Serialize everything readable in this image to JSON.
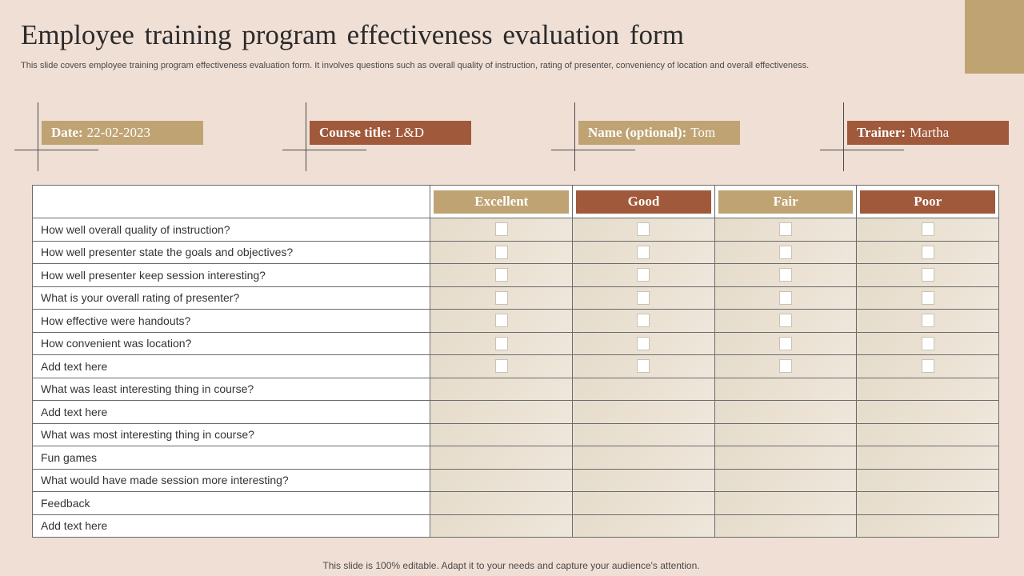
{
  "title": "Employee training program effectiveness evaluation form",
  "subtitle": "This slide covers employee training program effectiveness evaluation form. It involves questions such as  overall quality of instruction, rating of presenter, conveniency of location and overall effectiveness.",
  "fields": [
    {
      "label": "Date:",
      "value": "22-02-2023"
    },
    {
      "label": "Course title:",
      "value": "L&D"
    },
    {
      "label": "Name (optional):",
      "value": "Tom"
    },
    {
      "label": "Trainer:",
      "value": "Martha"
    }
  ],
  "ratings": [
    "Excellent",
    "Good",
    "Fair",
    "Poor"
  ],
  "rows": [
    {
      "question": "How well overall quality of instruction?",
      "checkboxes": true
    },
    {
      "question": "How well presenter state the goals and objectives?",
      "checkboxes": true
    },
    {
      "question": "How well presenter keep session interesting?",
      "checkboxes": true
    },
    {
      "question": "What is your overall rating of presenter?",
      "checkboxes": true
    },
    {
      "question": "How effective were handouts?",
      "checkboxes": true
    },
    {
      "question": "How convenient was location?",
      "checkboxes": true
    },
    {
      "question": "Add text here",
      "checkboxes": true
    },
    {
      "question": "What was least interesting thing in course?",
      "checkboxes": false
    },
    {
      "question": "Add text here",
      "checkboxes": false
    },
    {
      "question": "What was most interesting thing in course?",
      "checkboxes": false
    },
    {
      "question": "Fun games",
      "checkboxes": false
    },
    {
      "question": "What would have made session more interesting?",
      "checkboxes": false
    },
    {
      "question": "Feedback",
      "checkboxes": false
    },
    {
      "question": "Add text here",
      "checkboxes": false
    }
  ],
  "footer": "This slide is 100% editable. Adapt it to your needs and capture your audience's attention.",
  "colors": {
    "background": "#f0dfd5",
    "gold": "#bfa373",
    "brown": "#a0593a"
  }
}
